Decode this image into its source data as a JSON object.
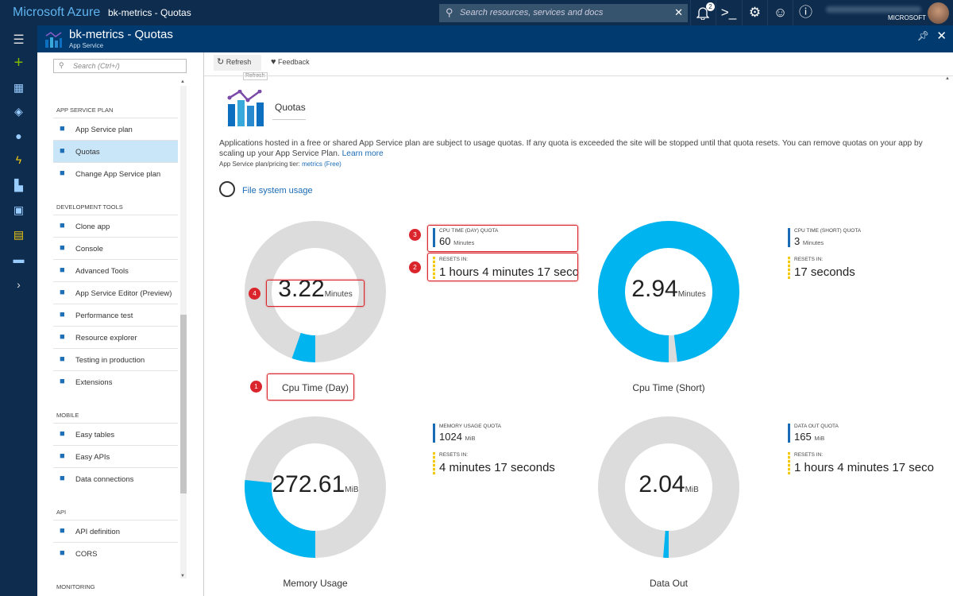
{
  "header": {
    "brand": "Microsoft Azure",
    "breadcrumb": "bk-metrics - Quotas",
    "search_placeholder": "Search resources, services and docs",
    "notifications_count": "2",
    "user_tenant": "MICROSOFT"
  },
  "blade": {
    "title": "bk-metrics - Quotas",
    "subtitle": "App Service",
    "search_placeholder": "Search (Ctrl+/)",
    "sections": [
      {
        "header": "APP SERVICE PLAN",
        "items": [
          {
            "label": "App Service plan",
            "icon": "app-service-plan-icon"
          },
          {
            "label": "Quotas",
            "icon": "quotas-icon",
            "selected": true
          },
          {
            "label": "Change App Service plan",
            "icon": "change-plan-icon"
          }
        ]
      },
      {
        "header": "DEVELOPMENT TOOLS",
        "items": [
          {
            "label": "Clone app",
            "icon": "clone-icon"
          },
          {
            "label": "Console",
            "icon": "console-icon"
          },
          {
            "label": "Advanced Tools",
            "icon": "kudu-icon"
          },
          {
            "label": "App Service Editor (Preview)",
            "icon": "code-icon"
          },
          {
            "label": "Performance test",
            "icon": "cloud-icon"
          },
          {
            "label": "Resource explorer",
            "icon": "explorer-icon"
          },
          {
            "label": "Testing in production",
            "icon": "flask-icon"
          },
          {
            "label": "Extensions",
            "icon": "extensions-icon"
          }
        ]
      },
      {
        "header": "MOBILE",
        "items": [
          {
            "label": "Easy tables",
            "icon": "table-icon"
          },
          {
            "label": "Easy APIs",
            "icon": "api-cloud-icon"
          },
          {
            "label": "Data connections",
            "icon": "database-icon"
          }
        ]
      },
      {
        "header": "API",
        "items": [
          {
            "label": "API definition",
            "icon": "api-definition-icon"
          },
          {
            "label": "CORS",
            "icon": "cors-icon"
          }
        ]
      },
      {
        "header": "MONITORING",
        "items": []
      }
    ]
  },
  "toolbar": {
    "refresh": "Refresh",
    "refresh_tooltip": "Refresh",
    "feedback": "Feedback"
  },
  "main": {
    "title": "Quotas",
    "description": "Applications hosted in a free or shared App Service plan are subject to usage quotas. If any quota is exceeded the site will be stopped until that quota resets. You can remove quotas on your app by scaling up your App Service Plan.",
    "learn_more": "Learn more",
    "tier_label": "App Service plan/pricing tier:",
    "tier_value": "metrics (Free)",
    "file_system_usage": "File system usage"
  },
  "colors": {
    "used": "#00b4ef",
    "remaining": "#dcdcdc",
    "quota_bar": "#1a6bb5",
    "resets_bar": "#f2c811",
    "callout": "#d9252b"
  },
  "quotas": [
    {
      "name": "Cpu Time (Day)",
      "value": "3.22",
      "unit": "Minutes",
      "used_fraction": 0.0537,
      "quota_label": "CPU TIME (DAY) QUOTA",
      "quota_value": "60",
      "quota_unit": "Minutes",
      "resets_label": "RESETS IN:",
      "resets_value": "1 hours 4 minutes 17 seco"
    },
    {
      "name": "Cpu Time (Short)",
      "value": "2.94",
      "unit": "Minutes",
      "used_fraction": 0.98,
      "quota_label": "CPU TIME (SHORT) QUOTA",
      "quota_value": "3",
      "quota_unit": "Minutes",
      "resets_label": "RESETS IN:",
      "resets_value": "17 seconds"
    },
    {
      "name": "Memory Usage",
      "value": "272.61",
      "unit": "MiB",
      "used_fraction": 0.266,
      "quota_label": "MEMORY USAGE QUOTA",
      "quota_value": "1024",
      "quota_unit": "MiB",
      "resets_label": "RESETS IN:",
      "resets_value": "4 minutes 17 seconds"
    },
    {
      "name": "Data Out",
      "value": "2.04",
      "unit": "MiB",
      "used_fraction": 0.0124,
      "quota_label": "DATA OUT QUOTA",
      "quota_value": "165",
      "quota_unit": "MiB",
      "resets_label": "RESETS IN:",
      "resets_value": "1 hours 4 minutes 17 seco"
    }
  ],
  "callouts": [
    "1",
    "2",
    "3",
    "4"
  ]
}
